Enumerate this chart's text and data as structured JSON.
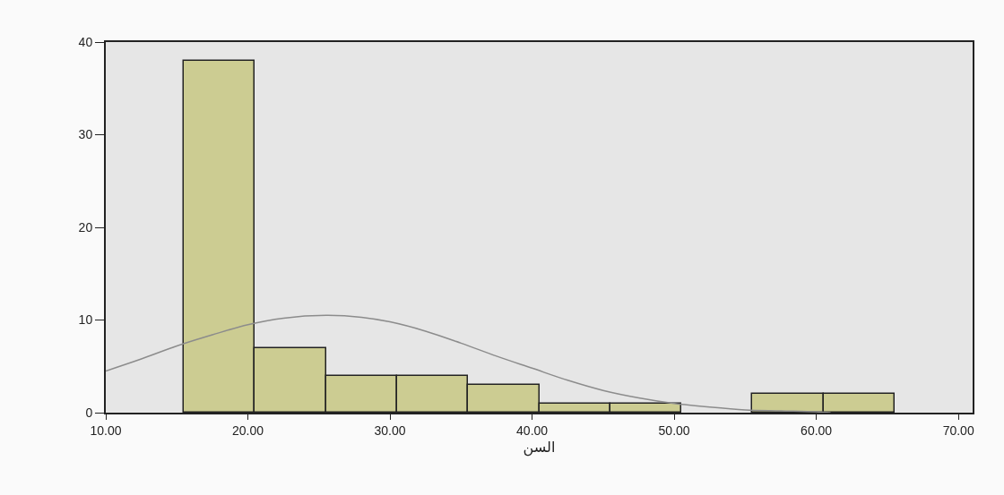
{
  "chart_data": {
    "type": "histogram",
    "xlabel": "السن",
    "bins": [
      15.5,
      20.5,
      25.5,
      30.5,
      35.5,
      40.5,
      45.5,
      50.5,
      55.5,
      60.5,
      65.5
    ],
    "values": [
      38,
      7,
      4,
      4,
      3,
      1,
      1,
      0,
      2,
      2
    ],
    "color": "#cccc92",
    "series": [
      {
        "type": "line",
        "color": "#8c8c8c",
        "x": [
          10,
          12.5,
          15,
          17.5,
          20,
          22.5,
          25.5,
          28,
          30,
          32.5,
          35,
          37.5,
          40,
          42.5,
          45,
          47.5,
          50,
          52.5,
          55,
          57.5,
          60,
          61
        ],
        "values": [
          4.5,
          5.8,
          7.2,
          8.4,
          9.5,
          10.2,
          10.5,
          10.3,
          9.8,
          8.8,
          7.5,
          6.1,
          4.8,
          3.5,
          2.4,
          1.6,
          1.0,
          0.6,
          0.3,
          0.2,
          0.1,
          0
        ]
      }
    ],
    "xlim": [
      10,
      71
    ],
    "xticks": [
      {
        "value": 10,
        "label": "10.00"
      },
      {
        "value": 20,
        "label": "20.00"
      },
      {
        "value": 30,
        "label": "30.00"
      },
      {
        "value": 40,
        "label": "40.00"
      },
      {
        "value": 50,
        "label": "50.00"
      },
      {
        "value": 60,
        "label": "60.00"
      },
      {
        "value": 70,
        "label": "70.00"
      }
    ],
    "ylim": [
      0,
      40
    ],
    "yticks": [
      0,
      10,
      20,
      30,
      40
    ]
  }
}
